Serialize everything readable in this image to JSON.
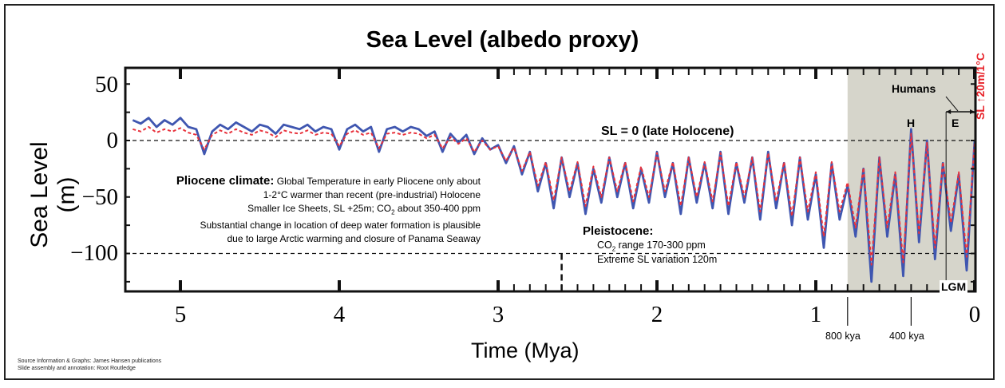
{
  "chart_data": {
    "type": "line",
    "title": "Sea Level (albedo proxy)",
    "xlabel": "Time (Mya)",
    "ylabel": "Sea Level (m)",
    "xlim": [
      5.35,
      0
    ],
    "ylim": [
      -133,
      63
    ],
    "x_ticks": [
      "5",
      "4",
      "3",
      "2",
      "1",
      "0"
    ],
    "y_ticks": [
      "50",
      "0",
      "−50",
      "−100"
    ],
    "grid": false,
    "colors": {
      "blue_series": "#3f56b0",
      "red_series": "#e8323c",
      "shaded_region": "#d6d5cb",
      "annotation_red": "#e8232a"
    },
    "shaded_region_mya": [
      0.8,
      0
    ],
    "x": [
      5.3,
      5.25,
      5.2,
      5.15,
      5.1,
      5.05,
      5.0,
      4.95,
      4.9,
      4.85,
      4.8,
      4.75,
      4.7,
      4.65,
      4.6,
      4.55,
      4.5,
      4.45,
      4.4,
      4.35,
      4.3,
      4.25,
      4.2,
      4.15,
      4.1,
      4.05,
      4.0,
      3.95,
      3.9,
      3.85,
      3.8,
      3.75,
      3.7,
      3.65,
      3.6,
      3.55,
      3.5,
      3.45,
      3.4,
      3.35,
      3.3,
      3.25,
      3.2,
      3.15,
      3.1,
      3.05,
      3.0,
      2.95,
      2.9,
      2.85,
      2.8,
      2.75,
      2.7,
      2.65,
      2.6,
      2.55,
      2.5,
      2.45,
      2.4,
      2.35,
      2.3,
      2.25,
      2.2,
      2.15,
      2.1,
      2.05,
      2.0,
      1.95,
      1.9,
      1.85,
      1.8,
      1.75,
      1.7,
      1.65,
      1.6,
      1.55,
      1.5,
      1.45,
      1.4,
      1.35,
      1.3,
      1.25,
      1.2,
      1.15,
      1.1,
      1.05,
      1.0,
      0.95,
      0.9,
      0.85,
      0.8,
      0.75,
      0.7,
      0.65,
      0.6,
      0.55,
      0.5,
      0.45,
      0.4,
      0.35,
      0.3,
      0.25,
      0.2,
      0.15,
      0.1,
      0.05,
      0.0
    ],
    "series": [
      {
        "values": [
          18,
          15,
          20,
          12,
          18,
          14,
          20,
          12,
          10,
          -12,
          8,
          14,
          10,
          16,
          12,
          8,
          14,
          12,
          6,
          14,
          12,
          10,
          14,
          8,
          12,
          10,
          -8,
          10,
          14,
          8,
          12,
          -10,
          10,
          12,
          8,
          12,
          10,
          4,
          8,
          -10,
          6,
          -2,
          5,
          -12,
          2,
          -8,
          -4,
          -20,
          -5,
          -30,
          -10,
          -45,
          -20,
          -60,
          -15,
          -50,
          -20,
          -65,
          -25,
          -55,
          -15,
          -50,
          -20,
          -60,
          -25,
          -55,
          -10,
          -50,
          -20,
          -65,
          -15,
          -55,
          -20,
          -60,
          -10,
          -65,
          -20,
          -55,
          -15,
          -70,
          -10,
          -60,
          -20,
          -75,
          -15,
          -70,
          -30,
          -95,
          -20,
          -70,
          -40,
          -85,
          -25,
          -125,
          -15,
          -85,
          -30,
          -120,
          10,
          -90,
          0,
          -105,
          -20,
          -80,
          -30,
          -115,
          0
        ]
      },
      {
        "values": [
          10,
          8,
          12,
          7,
          10,
          8,
          11,
          7,
          5,
          -8,
          5,
          9,
          6,
          10,
          7,
          5,
          9,
          7,
          3,
          9,
          7,
          6,
          9,
          5,
          7,
          6,
          -5,
          6,
          9,
          5,
          7,
          -7,
          6,
          7,
          5,
          7,
          6,
          2,
          5,
          -7,
          3,
          -3,
          2,
          -10,
          0,
          -8,
          -5,
          -18,
          -6,
          -27,
          -10,
          -40,
          -19,
          -53,
          -15,
          -45,
          -19,
          -58,
          -23,
          -50,
          -15,
          -45,
          -19,
          -54,
          -23,
          -50,
          -11,
          -45,
          -19,
          -58,
          -15,
          -50,
          -19,
          -54,
          -11,
          -58,
          -19,
          -50,
          -15,
          -63,
          -11,
          -54,
          -19,
          -67,
          -15,
          -63,
          -28,
          -85,
          -19,
          -63,
          -37,
          -77,
          -24,
          -110,
          -15,
          -77,
          -28,
          -108,
          6,
          -82,
          -2,
          -95,
          -19,
          -73,
          -28,
          -103,
          -2
        ]
      }
    ],
    "annotations": {
      "sl_zero": "SL = 0 (late Holocene)",
      "pliocene_head": "Pliocene climate:",
      "pliocene_lines": [
        "Global Temperature in early Pliocene only about",
        "1-2°C warmer than recent (pre-industrial) Holocene",
        "Smaller  Ice Sheets, SL +25m; CO",
        "2",
        "  about 350-400 ppm",
        "Substantial change in location of deep water formation is plausible",
        "due to large Arctic warming and closure of Panama Seaway"
      ],
      "pleistocene_head": "Pleistocene:",
      "pleistocene_co2_a": "CO",
      "pleistocene_co2_sub": "2",
      "pleistocene_co2_b": "  range 170-300 ppm",
      "pleistocene_sl": "Extreme SL variation 120m",
      "humans": "Humans",
      "H": "H",
      "E": "E",
      "LGM": "LGM",
      "kya800": "800 kya",
      "kya400": "400 kya",
      "sl_ratio": "SL ↑20m/1°C"
    }
  },
  "source": [
    "Source Information & Graphs: James Hansen publications",
    "Slide assembly and annotation: Root Routledge"
  ]
}
